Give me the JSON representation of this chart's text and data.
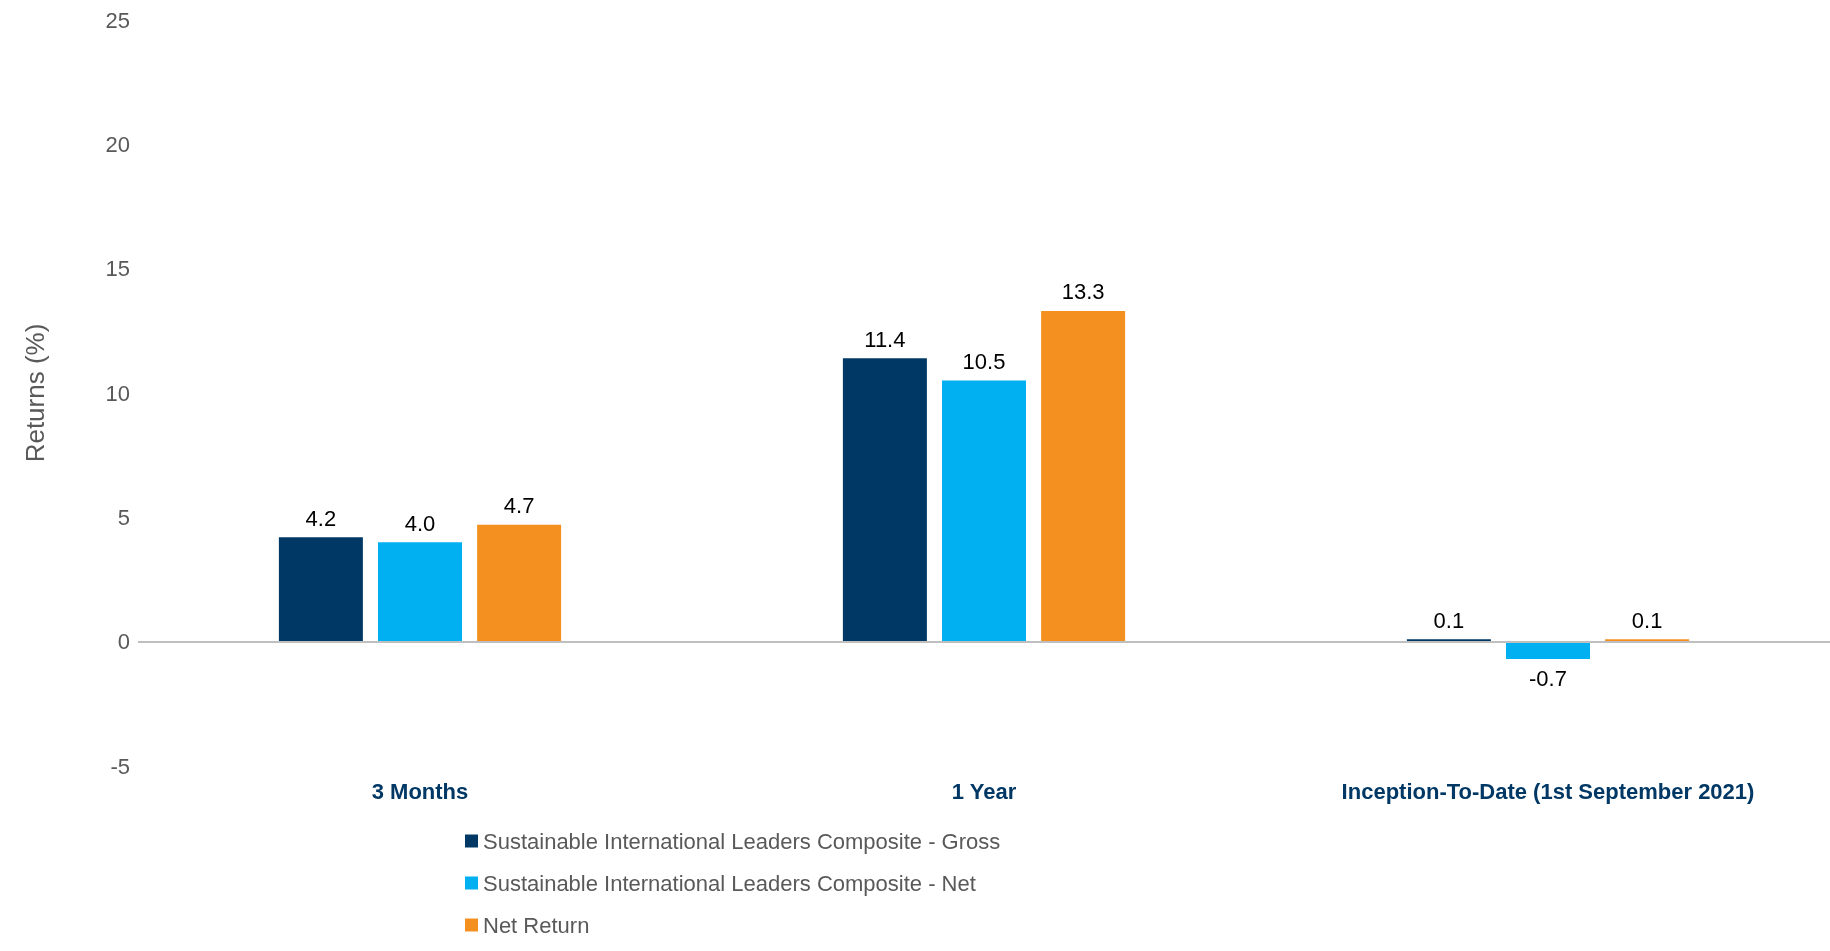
{
  "chart_data": {
    "type": "bar",
    "ylabel": "Returns (%)",
    "categories": [
      "3 Months",
      "1 Year",
      "Inception-To-Date (1st September 2021)"
    ],
    "series": [
      {
        "name": "Sustainable International Leaders Composite - Gross",
        "color": "#003865",
        "values": [
          4.2,
          11.4,
          0.1
        ],
        "value_labels": [
          "4.2",
          "11.4",
          "0.1"
        ]
      },
      {
        "name": "Sustainable International Leaders Composite - Net",
        "color": "#00b0f0",
        "values": [
          4.0,
          10.5,
          -0.7
        ],
        "value_labels": [
          "4.0",
          "10.5",
          "-0.7"
        ]
      },
      {
        "name": "Net Return",
        "color": "#f39020",
        "values": [
          4.7,
          13.3,
          0.1
        ],
        "value_labels": [
          "4.7",
          "13.3",
          "0.1"
        ]
      }
    ],
    "ylim": [
      -5,
      25
    ],
    "yticks": [
      -5,
      0,
      5,
      10,
      15,
      20,
      25
    ],
    "grid": false,
    "legend": "bottom",
    "ref_lines": [
      {
        "axis": "y",
        "value": 0,
        "color": "#bfbfbf"
      }
    ]
  }
}
